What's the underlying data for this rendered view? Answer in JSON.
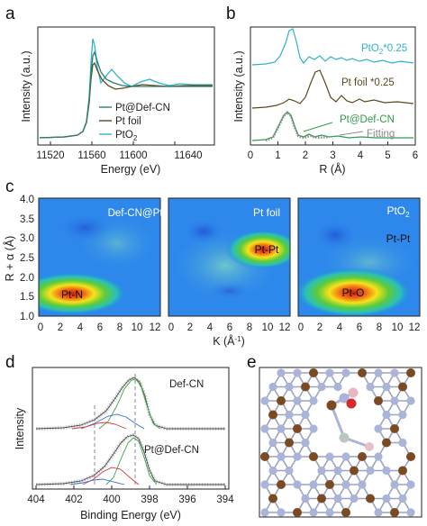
{
  "panels": {
    "a": {
      "letter": "a",
      "xlabel": "Energy (eV)",
      "ylabel": "Intensity (a.u.)",
      "xticks": [
        "11520",
        "11560",
        "11600",
        "11640"
      ],
      "legend": [
        {
          "label": "Pt@Def-CN",
          "color": "#2e7d6b"
        },
        {
          "label": "Pt foil",
          "color": "#5a4a1e"
        },
        {
          "label": "PtO",
          "sub": "2",
          "color": "#2fb3c7"
        }
      ]
    },
    "b": {
      "letter": "b",
      "xlabel": "R (Å)",
      "ylabel": "Intensity (a.u.)",
      "xticks": [
        "0",
        "1",
        "2",
        "3",
        "4",
        "5",
        "6"
      ],
      "labels": {
        "pto2": "PtO",
        "pto2_sub": "2",
        "pto2_suffix": "*0.25",
        "ptfoil": "Pt foil *0.25",
        "ptdef": "Pt@Def-CN",
        "fitting": "Fitting"
      }
    },
    "c": {
      "letter": "c",
      "ylabel_main": "R + α (Å)",
      "xlabel": "K (Å",
      "xlabel_sup": "-1",
      "xlabel_close": ")",
      "yticks": [
        "1.0",
        "1.5",
        "2.0",
        "2.5",
        "3.0",
        "3.5",
        "4.0"
      ],
      "xticks": [
        "0",
        "2",
        "4",
        "6",
        "8",
        "10",
        "12"
      ],
      "maps": [
        {
          "title": "Def-CN@Pt",
          "peak": "Pt-N"
        },
        {
          "title": "Pt foil",
          "peak": "Pt-Pt"
        },
        {
          "title": "PtO",
          "title_sub": "2",
          "peak": "Pt-O",
          "peak2": "Pt-Pt"
        }
      ]
    },
    "d": {
      "letter": "d",
      "ylabel": "Intensity",
      "xlabel": "Binding Energy (eV)",
      "xticks": [
        "404",
        "402",
        "400",
        "398",
        "396",
        "394"
      ],
      "top_label": "Def-CN",
      "bottom_label": "Pt@Def-CN"
    },
    "e": {
      "letter": "e"
    }
  },
  "colors": {
    "teal": "#2fb3c7",
    "green": "#2e9d4a",
    "brown": "#5a4a1e",
    "axis": "#222222",
    "nitrogen": "#aab4d8",
    "carbon": "#7a4a22",
    "oxygen": "#d42a2a"
  }
}
